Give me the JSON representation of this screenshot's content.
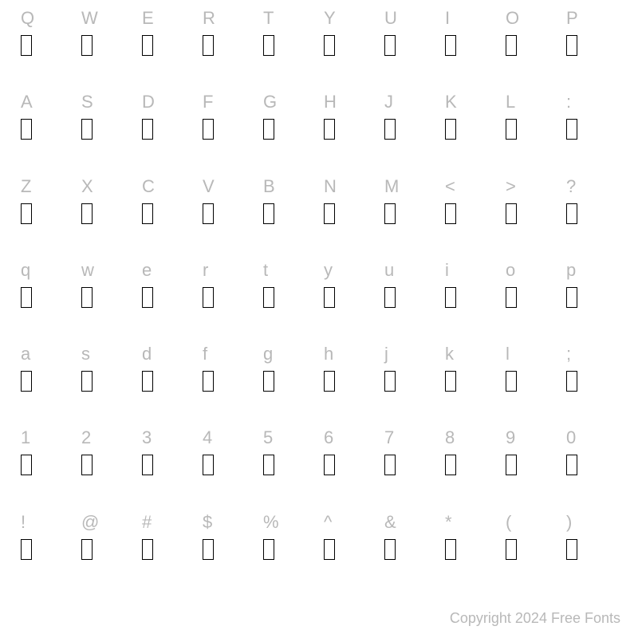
{
  "grid": {
    "rows": [
      [
        "Q",
        "W",
        "E",
        "R",
        "T",
        "Y",
        "U",
        "I",
        "O",
        "P"
      ],
      [
        "A",
        "S",
        "D",
        "F",
        "G",
        "H",
        "J",
        "K",
        "L",
        ":"
      ],
      [
        "Z",
        "X",
        "C",
        "V",
        "B",
        "N",
        "M",
        "<",
        ">",
        "?"
      ],
      [
        "q",
        "w",
        "e",
        "r",
        "t",
        "y",
        "u",
        "i",
        "o",
        "p"
      ],
      [
        "a",
        "s",
        "d",
        "f",
        "g",
        "h",
        "j",
        "k",
        "l",
        ";"
      ],
      [
        "1",
        "2",
        "3",
        "4",
        "5",
        "6",
        "7",
        "8",
        "9",
        "0"
      ],
      [
        "!",
        "@",
        "#",
        "$",
        "%",
        "^",
        "&",
        "*",
        "(",
        ")"
      ]
    ]
  },
  "styling": {
    "label_color": "#b8b8b8",
    "label_fontsize": 22,
    "glyph_box_width": 14,
    "glyph_box_height": 26,
    "glyph_box_border_color": "#000000",
    "glyph_box_border_width": 1.5,
    "background_color": "#ffffff",
    "copyright_color": "#b8b8b8",
    "copyright_fontsize": 18
  },
  "copyright": "Copyright 2024 Free Fonts"
}
